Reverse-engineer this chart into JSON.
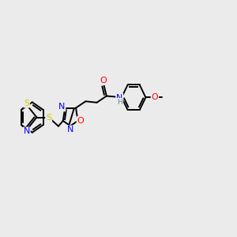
{
  "bg_color": "#ebebeb",
  "bond_color": "#000000",
  "atom_colors": {
    "S": "#cccc00",
    "N": "#0000ff",
    "O": "#ff0000",
    "H": "#4a9090",
    "C": "#000000"
  },
  "font_size": 7.0,
  "lw": 1.4
}
